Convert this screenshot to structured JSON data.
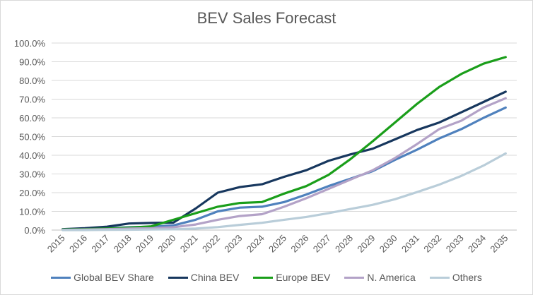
{
  "chart_data": {
    "type": "line",
    "title": "BEV Sales Forecast",
    "xlabel": "",
    "ylabel": "",
    "x": [
      "2015",
      "2016",
      "2017",
      "2018",
      "2019",
      "2020",
      "2021",
      "2022",
      "2023",
      "2024",
      "2025",
      "2026",
      "2027",
      "2028",
      "2029",
      "2030",
      "2031",
      "2032",
      "2033",
      "2034",
      "2035"
    ],
    "ylim": [
      0,
      100
    ],
    "yticks": [
      "0.0%",
      "10.0%",
      "20.0%",
      "30.0%",
      "40.0%",
      "50.0%",
      "60.0%",
      "70.0%",
      "80.0%",
      "90.0%",
      "100.0%"
    ],
    "grid": true,
    "legend": "bottom",
    "series": [
      {
        "name": "Global BEV Share",
        "color": "#4f81bd",
        "values": [
          0.2,
          0.5,
          1.0,
          1.5,
          1.8,
          2.5,
          5.5,
          10.0,
          12.0,
          12.5,
          15.0,
          19.0,
          23.5,
          27.5,
          31.5,
          37.5,
          43.0,
          49.0,
          54.0,
          60.0,
          65.5
        ]
      },
      {
        "name": "China BEV",
        "color": "#17375e",
        "values": [
          0.5,
          1.0,
          1.8,
          3.5,
          3.8,
          4.0,
          11.5,
          20.0,
          23.0,
          24.5,
          28.5,
          32.0,
          37.0,
          40.5,
          43.5,
          48.5,
          53.5,
          57.5,
          63.0,
          68.5,
          74.0
        ]
      },
      {
        "name": "Europe BEV",
        "color": "#1a9e1a",
        "values": [
          0.3,
          0.5,
          0.8,
          1.3,
          2.0,
          5.5,
          9.0,
          12.5,
          14.5,
          15.0,
          19.5,
          23.5,
          29.5,
          38.0,
          47.5,
          57.5,
          67.5,
          76.5,
          83.5,
          89.0,
          92.5
        ]
      },
      {
        "name": "N. America",
        "color": "#b3a2c7",
        "values": [
          0.1,
          0.3,
          0.5,
          0.8,
          1.0,
          1.5,
          3.0,
          5.5,
          7.5,
          8.5,
          12.5,
          17.0,
          22.0,
          27.0,
          32.0,
          38.5,
          46.0,
          54.0,
          58.5,
          65.5,
          70.5
        ]
      },
      {
        "name": "Others",
        "color": "#b9cdd9",
        "values": [
          0.0,
          0.0,
          0.1,
          0.2,
          0.3,
          0.4,
          0.8,
          1.6,
          2.8,
          3.9,
          5.5,
          7.0,
          9.0,
          11.3,
          13.5,
          16.5,
          20.3,
          24.3,
          29.0,
          34.5,
          41.0
        ]
      }
    ]
  }
}
